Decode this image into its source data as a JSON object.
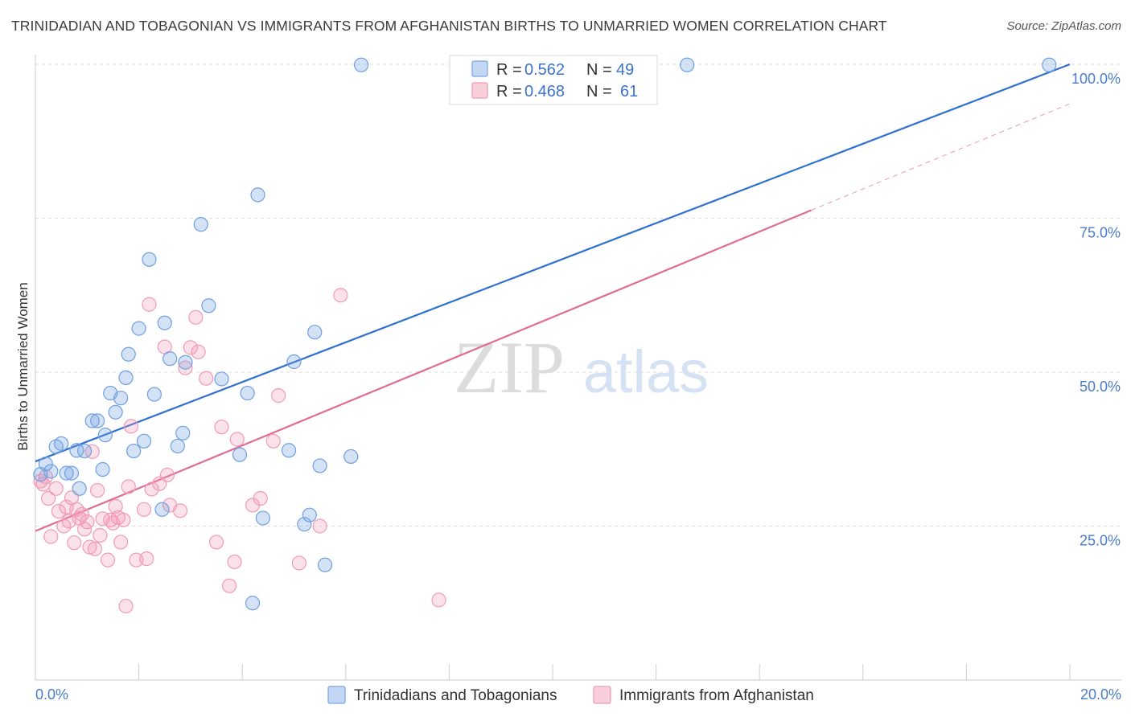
{
  "title": "TRINIDADIAN AND TOBAGONIAN VS IMMIGRANTS FROM AFGHANISTAN BIRTHS TO UNMARRIED WOMEN CORRELATION CHART",
  "source": "Source: ZipAtlas.com",
  "watermark": {
    "zip": "ZIP",
    "atlas": "atlas"
  },
  "chart_data": {
    "type": "scatter",
    "ylabel": "Births to Unmarried Women",
    "xlim": [
      0,
      20
    ],
    "ylim": [
      0,
      100
    ],
    "x_tick_labels": [
      "0.0%",
      "20.0%"
    ],
    "y_ticks": [
      25,
      50,
      75,
      100
    ],
    "y_tick_labels": [
      "25.0%",
      "50.0%",
      "75.0%",
      "100.0%"
    ],
    "grid": true,
    "legend_position": "top-center",
    "series": [
      {
        "name": "Trinidadians and Tobagonians",
        "color": "#6f9fe0",
        "line_color": "#2f6fcf",
        "r_label": "R =",
        "r_value": "0.562",
        "n_label": "N =",
        "n_value": "49",
        "trend": {
          "x": [
            0,
            20
          ],
          "y": [
            35.5,
            100
          ]
        },
        "points": [
          [
            0.1,
            33.4
          ],
          [
            0.2,
            35.1
          ],
          [
            0.3,
            33.9
          ],
          [
            0.4,
            37.9
          ],
          [
            0.5,
            38.4
          ],
          [
            0.6,
            33.6
          ],
          [
            0.7,
            33.6
          ],
          [
            0.8,
            37.3
          ],
          [
            0.85,
            31.1
          ],
          [
            0.95,
            37.2
          ],
          [
            1.1,
            42.1
          ],
          [
            1.2,
            42.1
          ],
          [
            1.3,
            34.2
          ],
          [
            1.35,
            39.8
          ],
          [
            1.45,
            46.6
          ],
          [
            1.55,
            43.5
          ],
          [
            1.65,
            45.8
          ],
          [
            1.75,
            49.1
          ],
          [
            1.8,
            52.9
          ],
          [
            1.9,
            37.2
          ],
          [
            2.0,
            57.1
          ],
          [
            2.1,
            38.8
          ],
          [
            2.2,
            68.3
          ],
          [
            2.3,
            46.4
          ],
          [
            2.45,
            27.7
          ],
          [
            2.5,
            58.0
          ],
          [
            2.6,
            52.2
          ],
          [
            2.75,
            38.0
          ],
          [
            2.85,
            40.1
          ],
          [
            2.9,
            51.6
          ],
          [
            3.2,
            74.0
          ],
          [
            3.35,
            60.8
          ],
          [
            3.6,
            48.9
          ],
          [
            3.95,
            36.6
          ],
          [
            4.1,
            46.6
          ],
          [
            4.2,
            12.5
          ],
          [
            4.3,
            78.8
          ],
          [
            4.4,
            26.3
          ],
          [
            4.9,
            37.3
          ],
          [
            5.0,
            51.7
          ],
          [
            5.2,
            25.3
          ],
          [
            5.3,
            26.8
          ],
          [
            5.4,
            56.5
          ],
          [
            5.5,
            34.8
          ],
          [
            5.6,
            18.7
          ],
          [
            6.1,
            36.3
          ],
          [
            6.3,
            99.9
          ],
          [
            12.6,
            99.9
          ],
          [
            19.6,
            99.9
          ]
        ]
      },
      {
        "name": "Immigrants from Afghanistan",
        "color": "#f29ab6",
        "line_color": "#e06c93",
        "r_label": "R =",
        "r_value": "0.468",
        "n_label": "N =",
        "n_value": "61",
        "trend": {
          "x": [
            0,
            15
          ],
          "y": [
            24.2,
            76.3
          ]
        },
        "trend_dashed": {
          "x": [
            15,
            20
          ],
          "y": [
            76.3,
            93.6
          ]
        },
        "points": [
          [
            0.1,
            32.3
          ],
          [
            0.15,
            31.8
          ],
          [
            0.2,
            33.0
          ],
          [
            0.25,
            29.5
          ],
          [
            0.3,
            23.3
          ],
          [
            0.4,
            31.1
          ],
          [
            0.45,
            27.4
          ],
          [
            0.55,
            25.0
          ],
          [
            0.6,
            28.1
          ],
          [
            0.65,
            25.8
          ],
          [
            0.7,
            29.6
          ],
          [
            0.75,
            22.3
          ],
          [
            0.8,
            27.7
          ],
          [
            0.85,
            26.3
          ],
          [
            0.9,
            26.9
          ],
          [
            0.95,
            24.5
          ],
          [
            1.0,
            25.7
          ],
          [
            1.05,
            21.6
          ],
          [
            1.1,
            37.1
          ],
          [
            1.15,
            21.3
          ],
          [
            1.2,
            30.8
          ],
          [
            1.25,
            23.5
          ],
          [
            1.3,
            26.2
          ],
          [
            1.4,
            19.5
          ],
          [
            1.45,
            26.0
          ],
          [
            1.5,
            25.5
          ],
          [
            1.55,
            28.2
          ],
          [
            1.6,
            26.4
          ],
          [
            1.65,
            22.4
          ],
          [
            1.7,
            26.0
          ],
          [
            1.75,
            12.0
          ],
          [
            1.8,
            31.4
          ],
          [
            1.85,
            41.2
          ],
          [
            1.95,
            19.5
          ],
          [
            2.1,
            27.7
          ],
          [
            2.15,
            19.7
          ],
          [
            2.2,
            61.0
          ],
          [
            2.25,
            31.0
          ],
          [
            2.4,
            31.9
          ],
          [
            2.5,
            54.1
          ],
          [
            2.55,
            33.3
          ],
          [
            2.6,
            28.4
          ],
          [
            2.8,
            27.5
          ],
          [
            2.9,
            50.7
          ],
          [
            3.0,
            54.0
          ],
          [
            3.1,
            58.9
          ],
          [
            3.15,
            53.3
          ],
          [
            3.3,
            49.0
          ],
          [
            3.5,
            22.4
          ],
          [
            3.6,
            41.1
          ],
          [
            3.75,
            15.3
          ],
          [
            3.85,
            19.2
          ],
          [
            3.9,
            39.1
          ],
          [
            4.2,
            28.4
          ],
          [
            4.35,
            29.5
          ],
          [
            4.6,
            38.8
          ],
          [
            4.7,
            46.2
          ],
          [
            5.1,
            19.0
          ],
          [
            5.5,
            25.0
          ],
          [
            5.9,
            62.5
          ],
          [
            7.8,
            13.0
          ]
        ]
      }
    ]
  }
}
